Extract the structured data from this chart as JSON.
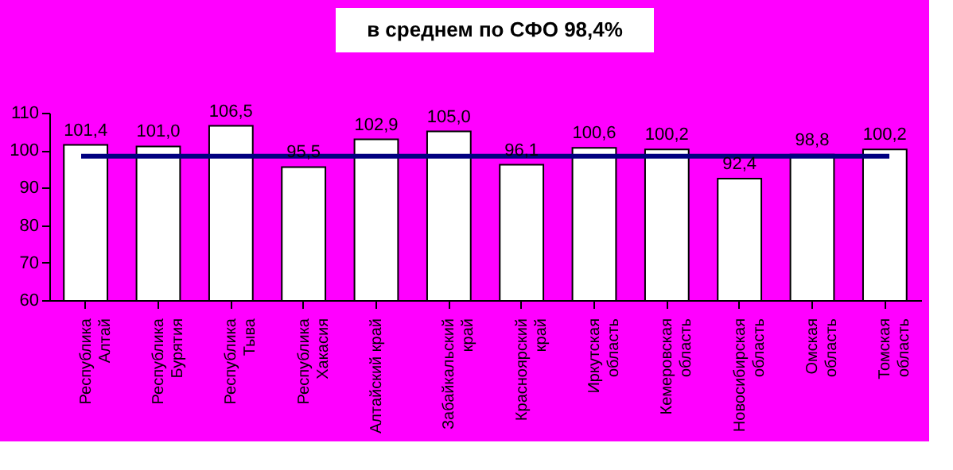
{
  "chart_data": {
    "type": "bar",
    "title": "в среднем по СФО 98,4%",
    "categories": [
      "Республика\nАлтай",
      "Республика\nБурятия",
      "Республика\nТыва",
      "Республика\nХакасия",
      "Алтайский край",
      "Забайкальский\nкрай",
      "Красноярский\nкрай",
      "Иркутская\nобласть",
      "Кемеровская\nобласть",
      "Новосибирская\nобласть",
      "Омская\nобласть",
      "Томская\nобласть"
    ],
    "values": [
      101.4,
      101.0,
      106.5,
      95.5,
      102.9,
      105.0,
      96.1,
      100.6,
      100.2,
      92.4,
      98.8,
      100.2
    ],
    "value_labels": [
      "101,4",
      "101,0",
      "106,5",
      "95,5",
      "102,9",
      "105,0",
      "96,1",
      "100,6",
      "100,2",
      "92,4",
      "98,8",
      "100,2"
    ],
    "color": "#ffffff",
    "ylim": [
      60,
      110
    ],
    "yticks": [
      60,
      70,
      80,
      90,
      100,
      110
    ],
    "grid": false,
    "ref_lines": [
      {
        "axis": "y",
        "value": 98.4,
        "color": "#000080"
      }
    ]
  }
}
